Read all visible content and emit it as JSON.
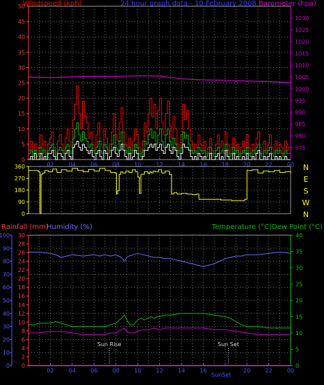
{
  "header": {
    "left_title": "Windspeed (kph)",
    "center_title": "24 hour graph data - 10 February 2008",
    "right_title": "Barometer (hpa)"
  },
  "colors": {
    "background": "#000000",
    "grid": "#7a7a7a",
    "windspeed": "#ff0000",
    "gust_avg": "#00c000",
    "wind_min": "#ffffff",
    "barometer": "#d000d0",
    "direction": "#ffff00",
    "rainfall": "#ff0000",
    "humidity": "#6f6fff",
    "temperature": "#00c000",
    "dewpoint": "#d000d0",
    "title_blue": "#3a3aff",
    "axis_left_red": "#ff4040",
    "axis_green": "#00d000",
    "axis_magenta": "#d000d0",
    "axis_blue": "#5a5aff",
    "xaxis": "#5050ff",
    "event_label": "#d8d8d8"
  },
  "chart_data": [
    {
      "type": "line",
      "title": "24 hour graph data - 10 February 2008",
      "x_tick_labels": [
        "02",
        "04",
        "06",
        "08",
        "10",
        "12",
        "14",
        "16",
        "18",
        "20",
        "22",
        "00"
      ],
      "y_left": {
        "label": "Windspeed (kph)",
        "ticks": [
          0,
          5,
          10,
          15,
          20,
          25,
          30,
          35,
          40,
          45,
          50
        ],
        "ylim": [
          0,
          50
        ]
      },
      "y_right": {
        "label": "Barometer (hpa)",
        "ticks": [
          975,
          980,
          985,
          990,
          995,
          1000,
          1005,
          1010,
          1015,
          1020,
          1025,
          1030
        ],
        "ylim": [
          970,
          1035
        ]
      },
      "series": [
        {
          "axis": "left",
          "color": "#ff0000",
          "y": [
            3,
            6,
            2,
            5,
            0,
            4,
            8,
            3,
            6,
            2,
            5,
            7,
            9,
            4,
            2,
            6,
            8,
            5,
            3,
            7,
            10,
            6,
            4,
            13,
            18,
            24,
            15,
            10,
            19,
            14,
            12,
            7,
            9,
            5,
            3,
            8,
            12,
            6,
            4,
            10,
            7,
            3,
            5,
            9,
            15,
            8,
            6,
            12,
            17,
            9,
            5,
            4,
            7,
            3,
            6,
            10,
            8,
            4,
            2,
            6,
            12,
            9,
            15,
            20,
            14,
            18,
            10,
            16,
            20,
            12,
            8,
            15,
            19,
            11,
            7,
            14,
            10,
            5,
            3,
            8,
            18,
            13,
            16,
            10,
            6,
            3,
            5,
            4,
            8,
            5,
            3,
            6,
            2,
            4,
            7,
            3,
            2,
            5,
            8,
            4,
            6,
            3,
            9,
            5,
            2,
            4,
            7,
            3,
            5,
            2,
            4,
            6,
            3,
            8,
            4,
            2,
            5,
            3,
            7,
            9,
            4,
            2,
            6,
            3,
            5,
            8,
            4,
            2,
            6,
            3,
            5,
            4,
            2,
            6,
            3,
            4
          ]
        },
        {
          "axis": "left",
          "color": "#00c000",
          "y": [
            2,
            3,
            1,
            3,
            1,
            2,
            4,
            2,
            3,
            1,
            3,
            4,
            5,
            3,
            1,
            3,
            4,
            3,
            2,
            4,
            5,
            3,
            2,
            7,
            10,
            12,
            8,
            6,
            9,
            7,
            6,
            4,
            5,
            3,
            2,
            4,
            6,
            3,
            2,
            5,
            4,
            2,
            3,
            5,
            8,
            4,
            3,
            6,
            9,
            5,
            3,
            2,
            4,
            2,
            3,
            5,
            4,
            2,
            1,
            3,
            6,
            5,
            8,
            10,
            7,
            9,
            5,
            8,
            10,
            6,
            4,
            8,
            10,
            6,
            4,
            7,
            5,
            3,
            2,
            4,
            9,
            7,
            8,
            5,
            3,
            2,
            3,
            2,
            4,
            3,
            2,
            3,
            1,
            2,
            4,
            2,
            1,
            3,
            4,
            2,
            3,
            2,
            5,
            3,
            1,
            2,
            4,
            2,
            3,
            1,
            2,
            3,
            2,
            4,
            2,
            1,
            3,
            2,
            4,
            5,
            2,
            1,
            3,
            2,
            3,
            4,
            2,
            1,
            3,
            2,
            3,
            2,
            1,
            3,
            2,
            2
          ]
        },
        {
          "axis": "left",
          "color": "#ffffff",
          "y": [
            0,
            1,
            0,
            2,
            0,
            0,
            2,
            0,
            1,
            0,
            2,
            2,
            3,
            1,
            0,
            2,
            2,
            1,
            0,
            2,
            3,
            1,
            0,
            4,
            5,
            6,
            4,
            3,
            5,
            4,
            3,
            2,
            3,
            1,
            0,
            2,
            3,
            1,
            0,
            3,
            2,
            0,
            1,
            3,
            4,
            2,
            1,
            3,
            5,
            3,
            1,
            0,
            2,
            0,
            1,
            3,
            2,
            0,
            0,
            1,
            3,
            3,
            4,
            5,
            4,
            5,
            3,
            4,
            5,
            3,
            2,
            4,
            5,
            3,
            2,
            4,
            3,
            1,
            0,
            2,
            5,
            4,
            4,
            3,
            1,
            0,
            1,
            0,
            2,
            1,
            0,
            1,
            0,
            0,
            2,
            0,
            0,
            1,
            2,
            0,
            1,
            0,
            3,
            1,
            0,
            0,
            2,
            0,
            1,
            0,
            0,
            1,
            0,
            2,
            0,
            0,
            1,
            0,
            2,
            3,
            0,
            0,
            1,
            0,
            1,
            2,
            0,
            0,
            1,
            0,
            1,
            0,
            0,
            1,
            0,
            0
          ]
        },
        {
          "axis": "right",
          "color": "#d000d0",
          "x": [
            0,
            2,
            4,
            6,
            8,
            10,
            12,
            13,
            14,
            16,
            18,
            20,
            22,
            24
          ],
          "y": [
            1005,
            1004.8,
            1005,
            1005.3,
            1005.2,
            1005.5,
            1005.4,
            1004.8,
            1004.2,
            1003.8,
            1003.6,
            1003.3,
            1003.1,
            1002.6
          ]
        }
      ]
    },
    {
      "type": "line",
      "y_left": {
        "ticks": [
          0,
          90,
          180,
          270,
          360
        ],
        "ylim": [
          0,
          360
        ]
      },
      "y_right": {
        "ticks": [
          "N",
          "W",
          "S",
          "E",
          "N"
        ]
      },
      "series": [
        {
          "color": "#ffff00",
          "x": [
            0,
            0.9,
            1.05,
            1.15,
            1.3,
            1.5,
            1.8,
            2.2,
            2.6,
            3,
            3.5,
            4,
            4.5,
            5,
            5.5,
            6,
            6.5,
            7,
            7.5,
            7.9,
            8.05,
            8.15,
            8.3,
            8.45,
            8.6,
            8.9,
            9.2,
            9.5,
            9.8,
            10.0,
            10.15,
            10.3,
            10.6,
            10.95,
            11.1,
            11.25,
            11.4,
            11.6,
            11.9,
            12.2,
            12.5,
            12.9,
            13.1,
            13.3,
            13.6,
            14,
            14.5,
            15,
            15.4,
            15.6,
            16,
            16.6,
            17,
            17.6,
            18,
            18.6,
            19.2,
            19.5,
            19.8,
            20,
            20.5,
            21,
            21.5,
            22,
            22.5,
            23,
            23.5,
            24
          ],
          "y": [
            330,
            320,
            0,
            300,
            310,
            330,
            320,
            340,
            315,
            335,
            325,
            345,
            330,
            320,
            338,
            325,
            345,
            330,
            315,
            310,
            150,
            175,
            300,
            320,
            310,
            325,
            315,
            335,
            320,
            280,
            155,
            300,
            320,
            305,
            320,
            310,
            325,
            320,
            335,
            310,
            325,
            300,
            150,
            160,
            150,
            155,
            150,
            145,
            150,
            110,
            110,
            110,
            110,
            105,
            105,
            100,
            100,
            100,
            110,
            330,
            335,
            310,
            325,
            320,
            330,
            315,
            320,
            305
          ]
        }
      ]
    },
    {
      "type": "line",
      "y_left_outer": {
        "label": "Humidity (%)",
        "ticks": [
          0,
          10,
          20,
          30,
          40,
          50,
          60,
          70,
          80,
          90,
          100
        ],
        "ylim": [
          0,
          100
        ]
      },
      "y_left_inner": {
        "label": "Rainfall (mm)",
        "ticks": [
          0,
          2,
          4,
          6,
          8,
          10,
          12,
          14,
          16,
          18,
          20,
          22,
          24,
          26,
          28,
          30
        ],
        "ylim": [
          0,
          30
        ]
      },
      "y_right": {
        "label": "Temperature (°C)Dew Point (°C)",
        "ticks": [
          0,
          5,
          10,
          15,
          20,
          25,
          30,
          35,
          40
        ],
        "ylim": [
          0,
          40
        ]
      },
      "events": [
        {
          "label": "Sun Rise",
          "x": 7.4
        },
        {
          "label": "Sun Set",
          "x": 18.3
        }
      ],
      "series": [
        {
          "name": "Rainfall (mm)",
          "color": "#ff0000",
          "x": [
            0,
            24
          ],
          "y": [
            0,
            0
          ]
        },
        {
          "name": "Humidity (%)",
          "color": "#6f6fff",
          "x": [
            0,
            1,
            2,
            2.5,
            3,
            3.5,
            4,
            5,
            6,
            6.5,
            7,
            7.5,
            8,
            8.5,
            8.8,
            9,
            9.2,
            9.6,
            10,
            10.5,
            11,
            11.5,
            12,
            12.5,
            13,
            13.5,
            14,
            14.5,
            15,
            15.5,
            16,
            16.5,
            17,
            17.5,
            18,
            18.5,
            19,
            19.5,
            20,
            21,
            22,
            23,
            24
          ],
          "y": [
            87,
            87,
            86,
            85,
            83,
            84,
            85,
            84,
            85,
            84,
            85,
            84,
            85,
            83,
            80,
            83,
            84,
            85,
            86,
            85,
            84,
            83,
            83,
            82,
            82,
            81,
            80,
            79,
            78,
            77,
            76,
            77,
            78,
            80,
            82,
            83,
            84,
            84,
            85,
            85,
            86,
            87,
            86
          ]
        },
        {
          "name": "Temperature (°C)",
          "color": "#00c000",
          "x": [
            0,
            0.5,
            1,
            1.5,
            2,
            2.5,
            3,
            3.5,
            4,
            5,
            6,
            7,
            7.5,
            8,
            8.5,
            8.8,
            9,
            9.3,
            9.6,
            10,
            10.3,
            10.6,
            10.9,
            11.2,
            11.5,
            11.8,
            12,
            12.5,
            13,
            14,
            15,
            16,
            17,
            18,
            18.5,
            19,
            19.5,
            20,
            21,
            22,
            23,
            24
          ],
          "y": [
            12.5,
            12.5,
            13,
            13,
            13,
            13.5,
            13,
            12.5,
            12,
            12,
            12,
            12,
            12.5,
            13,
            14.5,
            15.5,
            14,
            12.5,
            12.5,
            14,
            14.5,
            14,
            14.5,
            15,
            14.5,
            15,
            15,
            15.5,
            15.5,
            16,
            16,
            16,
            15.5,
            15,
            14.5,
            13.5,
            12.5,
            12,
            12,
            11.5,
            11.5,
            11.5
          ]
        },
        {
          "name": "Dew Point (°C)",
          "color": "#d000d0",
          "x": [
            0,
            1,
            2,
            3,
            4,
            5,
            6,
            7,
            7.5,
            8,
            8.5,
            8.8,
            9,
            9.3,
            9.6,
            10,
            10.5,
            11,
            11.5,
            12,
            12.5,
            13,
            14,
            15,
            16,
            17,
            18,
            19,
            20,
            21,
            22,
            23,
            24
          ],
          "y": [
            10,
            10,
            10.5,
            10.5,
            10,
            9.5,
            9.5,
            9.5,
            10,
            10,
            11,
            11.5,
            10.5,
            10,
            10,
            10.5,
            11,
            11,
            11.5,
            11,
            11.5,
            11.5,
            11.5,
            11.5,
            11.5,
            11,
            11,
            10.5,
            10,
            9.5,
            9.5,
            9.5,
            9.5
          ]
        }
      ]
    }
  ],
  "bottom_xaxis": {
    "tick_labels": [
      "02",
      "04",
      "06",
      "08",
      "10",
      "12",
      "14",
      "16",
      " ",
      "20",
      "22",
      "00"
    ],
    "extra_label": "SunSet"
  }
}
